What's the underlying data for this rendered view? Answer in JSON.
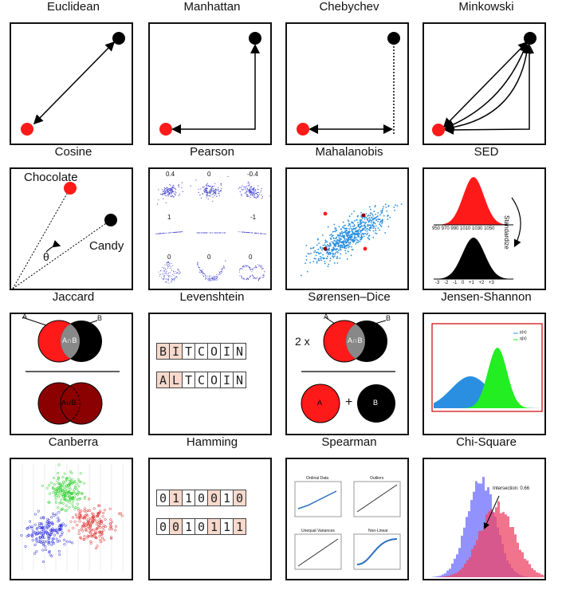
{
  "metrics": [
    {
      "name": "Euclidean"
    },
    {
      "name": "Manhattan"
    },
    {
      "name": "Chebychev"
    },
    {
      "name": "Minkowski"
    },
    {
      "name": "Cosine"
    },
    {
      "name": "Pearson"
    },
    {
      "name": "Mahalanobis"
    },
    {
      "name": "SED"
    },
    {
      "name": "Jaccard"
    },
    {
      "name": "Levenshtein"
    },
    {
      "name": "Sørensen–Dice"
    },
    {
      "name": "Jensen-Shannon"
    },
    {
      "name": "Canberra"
    },
    {
      "name": "Hamming"
    },
    {
      "name": "Spearman"
    },
    {
      "name": "Chi-Square"
    }
  ],
  "cosine": {
    "label_a": "Chocolate",
    "label_b": "Candy",
    "angle": "θ"
  },
  "pearson": {
    "coefficients": [
      "0.4",
      "0",
      "-0.4",
      "1",
      "-1",
      "0",
      "0",
      "0"
    ]
  },
  "sed": {
    "side_label": "Standardize",
    "top_ticks": "950 970 990 1010 1030 1050",
    "bottom_ticks": "-3 -2 -1 0 +1 +2 +3"
  },
  "jaccard": {
    "a": "A",
    "b": "B",
    "intersection": "A∩B",
    "union": "A∪B"
  },
  "levenshtein": {
    "word1": [
      "B",
      "I",
      "T",
      "C",
      "O",
      "I",
      "N"
    ],
    "word2": [
      "A",
      "L",
      "T",
      "C",
      "O",
      "I",
      "N"
    ],
    "highlight": [
      0,
      1
    ]
  },
  "dice": {
    "multiplier": "2 x",
    "a": "A",
    "b": "B",
    "intersection": "A∩B",
    "plus": "+"
  },
  "jensen": {
    "legend": [
      "p(x)",
      "q(x)"
    ]
  },
  "hamming": {
    "row1": [
      "0",
      "1",
      "1",
      "0",
      "0",
      "1",
      "0"
    ],
    "row2": [
      "0",
      "0",
      "1",
      "0",
      "1",
      "1",
      "1"
    ],
    "highlight1": [
      1,
      4,
      6
    ],
    "highlight2": [
      1,
      4,
      6
    ]
  },
  "spearman": {
    "panels": [
      "Ordinal Data",
      "Outliers",
      "Unequal Variances",
      "Non-Linear"
    ]
  },
  "chisquare": {
    "annotation": "Intersection: 0.66"
  },
  "colors": {
    "red": "#ff1a1a",
    "black": "#000000",
    "green": "#22ee22",
    "blue": "#2a8fe0"
  }
}
